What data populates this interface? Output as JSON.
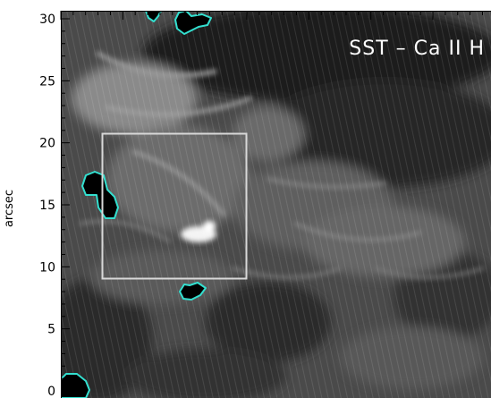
{
  "figure": {
    "title": "SST – Ca II H",
    "ylabel": "arcsec",
    "yticks": [
      "0",
      "5",
      "10",
      "15",
      "20",
      "25",
      "30"
    ],
    "colors": {
      "background": "#ffffff",
      "axis": "#000000",
      "box": "#d8d8d8",
      "contour": "#33e0d0",
      "title": "#ffffff"
    }
  }
}
